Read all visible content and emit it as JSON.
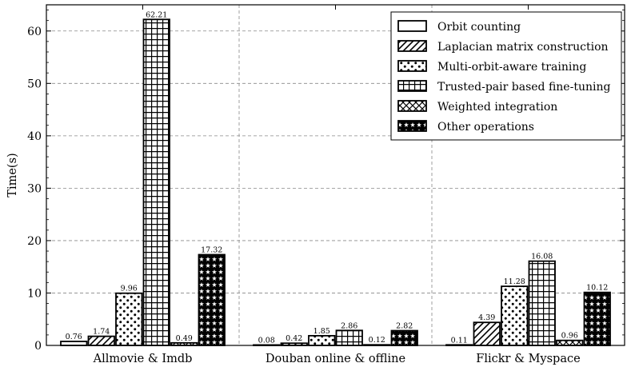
{
  "chart_data": {
    "type": "bar",
    "ylabel": "Time(s)",
    "ylim": [
      0,
      65
    ],
    "yticks": [
      0,
      10,
      20,
      30,
      40,
      50,
      60
    ],
    "grid": true,
    "legend_position": "top-right",
    "categories": [
      "Allmovie & Imdb",
      "Douban online & offline",
      "Flickr & Myspace"
    ],
    "series": [
      {
        "name": "Orbit counting",
        "pattern": "none",
        "values": [
          0.76,
          0.08,
          0.11
        ]
      },
      {
        "name": "Laplacian matrix construction",
        "pattern": "diagonal",
        "values": [
          1.74,
          0.42,
          4.39
        ]
      },
      {
        "name": "Multi-orbit-aware training",
        "pattern": "dots",
        "values": [
          9.96,
          1.85,
          11.28
        ]
      },
      {
        "name": "Trusted-pair based fine-tuning",
        "pattern": "grid",
        "values": [
          62.21,
          2.86,
          16.08
        ]
      },
      {
        "name": "Weighted integration",
        "pattern": "cross",
        "values": [
          0.49,
          0.12,
          0.96
        ]
      },
      {
        "name": "Other operations",
        "pattern": "stars",
        "values": [
          17.32,
          2.82,
          10.12
        ]
      }
    ]
  }
}
